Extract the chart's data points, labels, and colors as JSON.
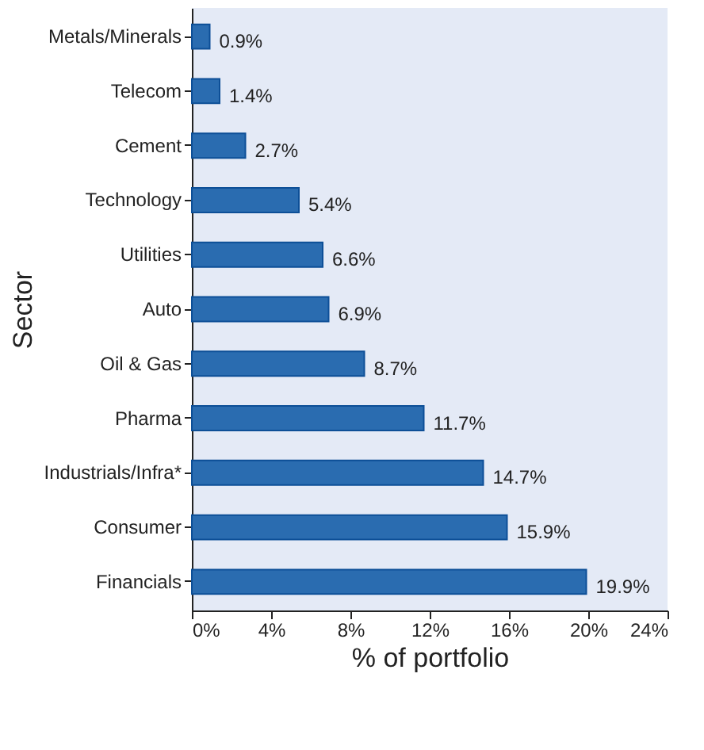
{
  "chart_data": {
    "type": "bar",
    "orientation": "horizontal",
    "xlabel": "% of portfolio",
    "ylabel": "Sector",
    "categories": [
      "Metals/Minerals",
      "Telecom",
      "Cement",
      "Technology",
      "Utilities",
      "Auto",
      "Oil & Gas",
      "Pharma",
      "Industrials/Infra*",
      "Consumer",
      "Financials"
    ],
    "values": [
      0.9,
      1.4,
      2.7,
      5.4,
      6.6,
      6.9,
      8.7,
      11.7,
      14.7,
      15.9,
      19.9
    ],
    "value_labels": [
      "0.9%",
      "1.4%",
      "2.7%",
      "5.4%",
      "6.6%",
      "6.9%",
      "8.7%",
      "11.7%",
      "14.7%",
      "15.9%",
      "19.9%"
    ],
    "color": "#2a6cb0",
    "xlim": [
      0,
      24
    ],
    "xticks": [
      {
        "value": 0,
        "label": "0%"
      },
      {
        "value": 4,
        "label": "4%"
      },
      {
        "value": 8,
        "label": "8%"
      },
      {
        "value": 12,
        "label": "12%"
      },
      {
        "value": 16,
        "label": "16%"
      },
      {
        "value": 20,
        "label": "20%"
      },
      {
        "value": 24,
        "label": "24%"
      }
    ],
    "grid": false
  }
}
